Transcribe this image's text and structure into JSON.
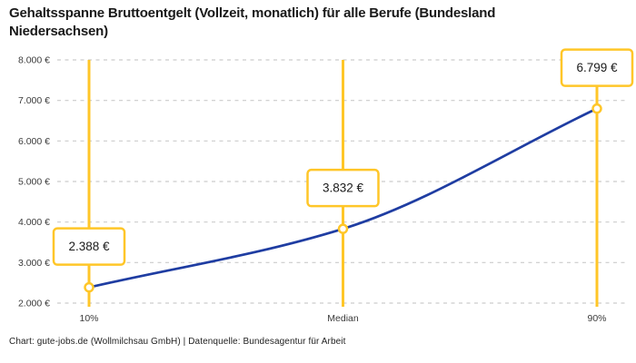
{
  "title": "Gehaltsspanne Bruttoentgelt (Vollzeit, monatlich) für alle Berufe (Bundesland Niedersachsen)",
  "footer": "Chart: gute-jobs.de (Wollmilchsau GmbH) | Datenquelle: Bundesagentur für Arbeit",
  "colors": {
    "accent_yellow": "#FFC628",
    "line_blue": "#1F3DA2",
    "grid": "#CCCCCC",
    "text_dark": "#1A1A1A",
    "text_muted": "#3B3B3B",
    "box_fill": "#FFFFFF"
  },
  "chart_data": {
    "type": "line",
    "title": "Gehaltsspanne Bruttoentgelt (Vollzeit, monatlich) für alle Berufe (Bundesland Niedersachsen)",
    "categories": [
      "10%",
      "Median",
      "90%"
    ],
    "values": [
      2388,
      3832,
      6799
    ],
    "value_labels": [
      "2.388 €",
      "3.832 €",
      "6.799 €"
    ],
    "series_name": "Bruttoentgelt",
    "xlabel": "",
    "ylabel": "",
    "ylim": [
      2000,
      8000
    ],
    "y_tick_step": 1000,
    "y_tick_labels": [
      "2.000 €",
      "3.000 €",
      "4.000 €",
      "5.000 €",
      "6.000 €",
      "7.000 €",
      "8.000 €"
    ],
    "grid": "horizontal-dashed",
    "legend": "none",
    "curve": "monotone"
  }
}
